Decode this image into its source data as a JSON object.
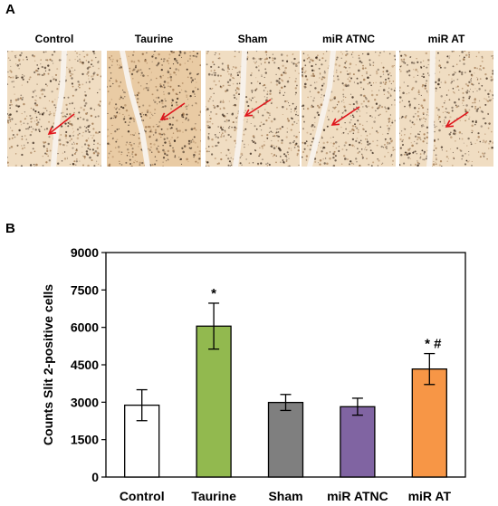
{
  "panels": {
    "a": "A",
    "b": "B"
  },
  "micrographs": [
    {
      "label": "Control"
    },
    {
      "label": "Taurine"
    },
    {
      "label": "Sham"
    },
    {
      "label": "miR ATNC"
    },
    {
      "label": "miR AT"
    }
  ],
  "colors": {
    "tissue": "#f0ddc2",
    "tissue_dark": "#e9cba4",
    "arrow": "#e0151c",
    "nuclei": "#3b2a1d"
  },
  "chart_data": {
    "type": "bar",
    "title": "",
    "xlabel": "",
    "ylabel": "Counts Slit 2-positive cells",
    "ylim": [
      0,
      9000
    ],
    "yticks": [
      0,
      1500,
      3000,
      4500,
      6000,
      7500,
      9000
    ],
    "grid": false,
    "categories": [
      "Control",
      "Taurine",
      "Sham",
      "miR ATNC",
      "miR AT"
    ],
    "values": [
      2880,
      6050,
      2990,
      2820,
      4330
    ],
    "errors": [
      620,
      920,
      320,
      340,
      620
    ],
    "bar_colors": [
      "#ffffff",
      "#92b94f",
      "#7f7f7f",
      "#8064a2",
      "#f79646"
    ],
    "annotations": [
      "",
      "*",
      "",
      "",
      "* #"
    ]
  }
}
